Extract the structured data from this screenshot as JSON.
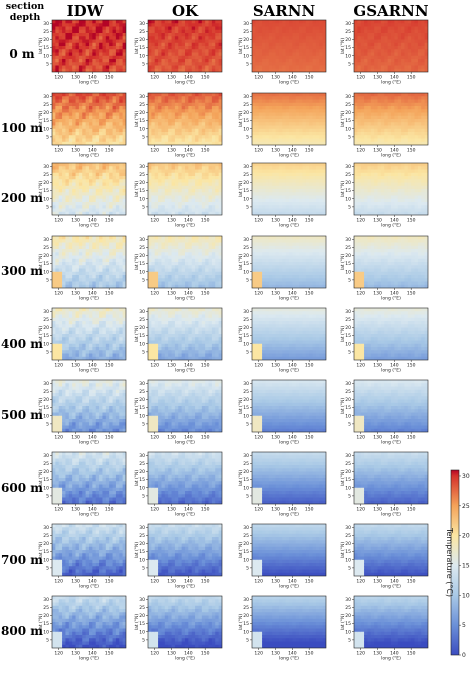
{
  "corner": {
    "line1": "section",
    "line2": "depth"
  },
  "chart_data": {
    "type": "heatmap",
    "columns": [
      "IDW",
      "OK",
      "SARNN",
      "GSARNN"
    ],
    "rows": [
      "0 m",
      "100 m",
      "200 m",
      "300 m",
      "400 m",
      "500 m",
      "600 m",
      "700 m",
      "800 m"
    ],
    "xlabel": "long (°E)",
    "ylabel": "lat (°N)",
    "xticks": [
      "120",
      "130",
      "140",
      "150"
    ],
    "yticks": [
      "5",
      "10",
      "15",
      "20",
      "25",
      "30"
    ],
    "xlim": [
      116,
      160
    ],
    "ylim": [
      0,
      32
    ],
    "colorbar": {
      "label": "Temperature (°C)",
      "ticks": [
        0,
        5,
        10,
        15,
        20,
        25,
        30
      ],
      "range": [
        0,
        31
      ]
    },
    "row_mean_temperature": [
      29,
      24,
      18,
      14,
      12,
      10,
      8,
      7,
      6
    ]
  },
  "colors": {
    "c0": "#3b4cc0",
    "c5": "#6b90d8",
    "c10": "#a9c9e6",
    "c15": "#dce9f0",
    "c20": "#fbe6a3",
    "c25": "#f4a35a",
    "c30": "#d4322c",
    "c31": "#b40426"
  }
}
